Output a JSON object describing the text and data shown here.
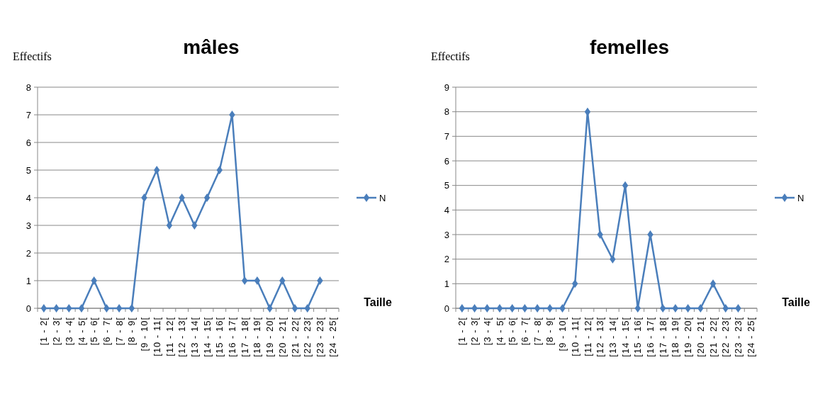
{
  "chart_data": [
    {
      "type": "line",
      "title": "mâles",
      "ylabel": "Effectifs",
      "xlabel": "Taille",
      "categories": [
        "[1 - 2[",
        "[2 - 3[",
        "[3 - 4[",
        "[4 - 5[",
        "[5 - 6[",
        "[6 - 7[",
        "[7 - 8[",
        "[8 - 9[",
        "[9 - 10[",
        "[10 - 11[",
        "[11 - 12[",
        "[12 - 13[",
        "[13 - 14[",
        "[14 - 15[",
        "[15 - 16[",
        "[16 - 17[",
        "[17 - 18[",
        "[18 - 19[",
        "[19 - 20[",
        "[20 - 21[",
        "[21 - 22[",
        "[22 - 23[",
        "[23 - 23[",
        "[24 - 25["
      ],
      "series": [
        {
          "name": "N",
          "color": "#4a7ebb",
          "values": [
            0,
            0,
            0,
            0,
            1,
            0,
            0,
            0,
            4,
            5,
            3,
            4,
            3,
            4,
            5,
            7,
            1,
            1,
            0,
            1,
            0,
            0,
            1,
            null
          ]
        }
      ],
      "ylim": [
        0,
        8
      ],
      "yticks": [
        0,
        1,
        2,
        3,
        4,
        5,
        6,
        7,
        8
      ],
      "grid": "y",
      "legend": "right",
      "marker": "diamond"
    },
    {
      "type": "line",
      "title": "femelles",
      "ylabel": "Effectifs",
      "xlabel": "Taille",
      "categories": [
        "[1 - 2[",
        "[2 - 3[",
        "[3 - 4[",
        "[4 - 5[",
        "[5 - 6[",
        "[6 - 7[",
        "[7 - 8[",
        "[8 - 9[",
        "[9 - 10[",
        "[10 - 11[",
        "[11 - 12[",
        "[12 - 13[",
        "[13 - 14[",
        "[14 - 15[",
        "[15 - 16[",
        "[16 - 17[",
        "[17 - 18[",
        "[18 - 19[",
        "[19 - 20[",
        "[20 - 21[",
        "[21 - 22[",
        "[22 - 23[",
        "[23 - 23[",
        "[24 - 25["
      ],
      "series": [
        {
          "name": "N",
          "color": "#4a7ebb",
          "values": [
            0,
            0,
            0,
            0,
            0,
            0,
            0,
            0,
            0,
            1,
            8,
            3,
            2,
            5,
            0,
            3,
            0,
            0,
            0,
            0,
            1,
            0,
            0,
            null
          ]
        }
      ],
      "ylim": [
        0,
        9
      ],
      "yticks": [
        0,
        1,
        2,
        3,
        4,
        5,
        6,
        7,
        8,
        9
      ],
      "grid": "y",
      "legend": "right",
      "marker": "diamond"
    }
  ]
}
